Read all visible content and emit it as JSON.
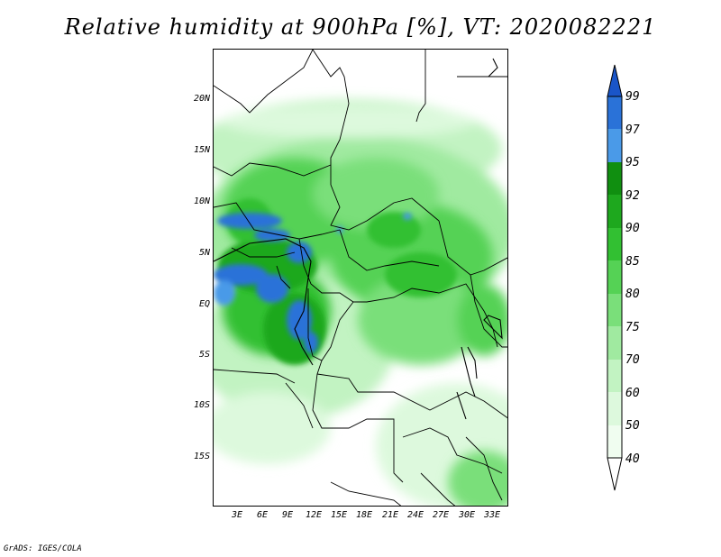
{
  "title": "Relative humidity at 900hPa [%], VT: 2020082221",
  "credit": "GrADS: IGES/COLA",
  "map": {
    "lat_labels": [
      "20N",
      "15N",
      "10N",
      "5N",
      "EQ",
      "5S",
      "10S",
      "15S"
    ],
    "lat_values": [
      20,
      15,
      10,
      5,
      0,
      -5,
      -10,
      -15
    ],
    "lon_labels": [
      "3E",
      "6E",
      "9E",
      "12E",
      "15E",
      "18E",
      "21E",
      "24E",
      "27E",
      "30E",
      "33E"
    ],
    "lon_values": [
      3,
      6,
      9,
      12,
      15,
      18,
      21,
      24,
      27,
      30,
      33
    ]
  },
  "colorbar": {
    "labels": [
      "99",
      "97",
      "95",
      "92",
      "90",
      "85",
      "80",
      "75",
      "70",
      "60",
      "50",
      "40"
    ],
    "colors": {
      "99": "#1a55c8",
      "97": "#2a72d8",
      "95": "#4a9ae8",
      "92": "#108f10",
      "90": "#1ea81e",
      "85": "#32c032",
      "80": "#55d255",
      "75": "#7adf7a",
      "70": "#a0eaa0",
      "60": "#c2f3c2",
      "50": "#ddf9dd",
      "40": "#f0fdf0"
    }
  }
}
